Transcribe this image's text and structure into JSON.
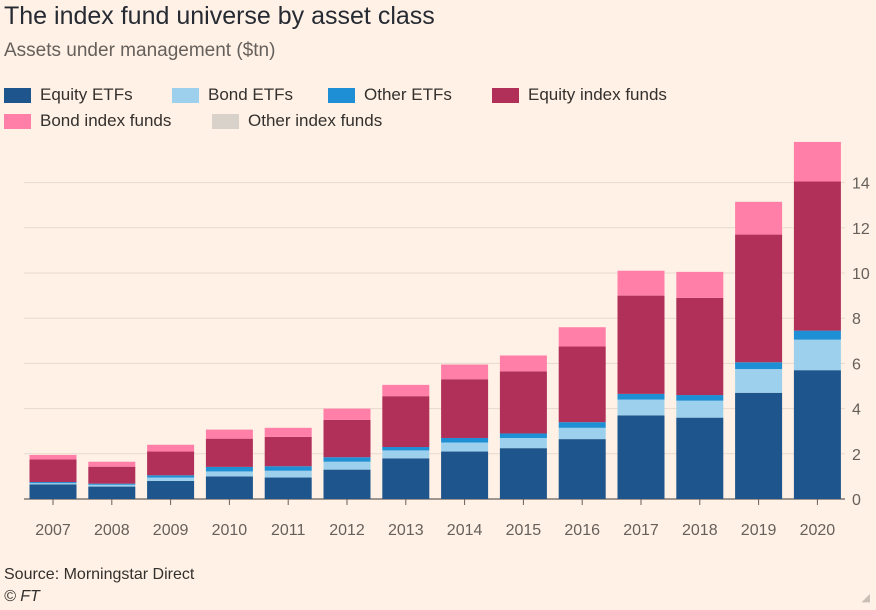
{
  "title": "The index fund universe by asset class",
  "subtitle": "Assets under management ($tn)",
  "source": "Source: Morningstar Direct",
  "credit": "© FT",
  "chart_data": {
    "type": "bar",
    "stacked": true,
    "title": "The index fund universe by asset class",
    "subtitle": "Assets under management ($tn)",
    "categories": [
      "2007",
      "2008",
      "2009",
      "2010",
      "2011",
      "2012",
      "2013",
      "2014",
      "2015",
      "2016",
      "2017",
      "2018",
      "2019",
      "2020"
    ],
    "ylim": [
      0,
      16
    ],
    "yticks": [
      0,
      2,
      4,
      6,
      8,
      10,
      12,
      14
    ],
    "y_axis_side": "right",
    "grid": true,
    "legend_position": "top",
    "series": [
      {
        "name": "Equity ETFs",
        "color": "#1e558c",
        "values": [
          0.65,
          0.55,
          0.8,
          1.0,
          0.95,
          1.3,
          1.8,
          2.1,
          2.25,
          2.65,
          3.7,
          3.6,
          4.7,
          5.7
        ]
      },
      {
        "name": "Bond ETFs",
        "color": "#9dd0ec",
        "values": [
          0.05,
          0.08,
          0.15,
          0.22,
          0.3,
          0.35,
          0.35,
          0.4,
          0.45,
          0.5,
          0.7,
          0.75,
          1.05,
          1.35
        ]
      },
      {
        "name": "Other ETFs",
        "color": "#1e8fd4",
        "values": [
          0.05,
          0.05,
          0.1,
          0.2,
          0.2,
          0.2,
          0.15,
          0.2,
          0.2,
          0.25,
          0.25,
          0.25,
          0.3,
          0.4
        ]
      },
      {
        "name": "Equity index funds",
        "color": "#b0305a",
        "values": [
          1.0,
          0.75,
          1.05,
          1.25,
          1.3,
          1.65,
          2.25,
          2.6,
          2.75,
          3.35,
          4.35,
          4.3,
          5.65,
          6.6
        ]
      },
      {
        "name": "Bond index funds",
        "color": "#ff7fa8",
        "values": [
          0.2,
          0.22,
          0.3,
          0.4,
          0.4,
          0.5,
          0.5,
          0.65,
          0.7,
          0.85,
          1.1,
          1.15,
          1.45,
          1.75
        ]
      },
      {
        "name": "Other index funds",
        "color": "#d9d2cb",
        "values": [
          0.0,
          0.0,
          0.0,
          0.0,
          0.0,
          0.0,
          0.0,
          0.0,
          0.0,
          0.0,
          0.0,
          0.0,
          0.0,
          0.0
        ]
      }
    ]
  }
}
